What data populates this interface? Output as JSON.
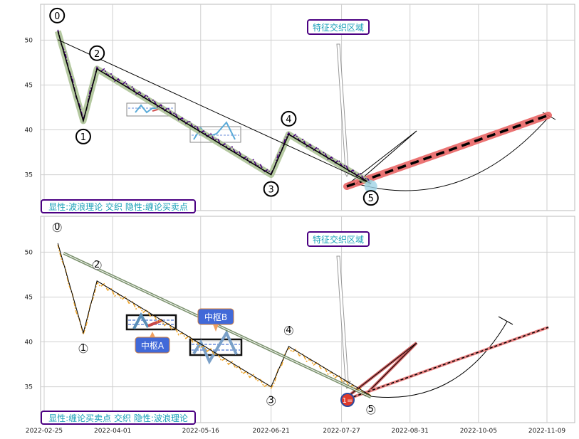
{
  "chart_data": [
    {
      "type": "line",
      "panel": "top",
      "x_ticks": [
        "2022-02-25",
        "2022-04-01",
        "2022-05-16",
        "2022-06-21",
        "2022-07-27",
        "2022-08-31",
        "2022-10-05",
        "2022-11-09"
      ],
      "y_ticks": [
        35,
        40,
        45,
        50
      ],
      "ylim": [
        31,
        54
      ],
      "grid": true,
      "annotation_title": "特征交织区域",
      "footer": "显性:波浪理论 交织 隐性:缠论买卖点",
      "wave_points": [
        {
          "label": "0",
          "x": "2022-03-04",
          "y": 51.0
        },
        {
          "label": "1",
          "x": "2022-03-17",
          "y": 41.0
        },
        {
          "label": "2",
          "x": "2022-03-24",
          "y": 46.8
        },
        {
          "label": "3",
          "x": "2022-06-21",
          "y": 35.0
        },
        {
          "label": "4",
          "x": "2022-06-30",
          "y": 39.5
        },
        {
          "label": "5",
          "x": "2022-08-11",
          "y": 34.0
        }
      ]
    },
    {
      "type": "line",
      "panel": "bottom",
      "x_ticks": [
        "2022-02-25",
        "2022-04-01",
        "2022-05-16",
        "2022-06-21",
        "2022-07-27",
        "2022-08-31",
        "2022-10-05",
        "2022-11-09"
      ],
      "y_ticks": [
        35,
        40,
        45,
        50
      ],
      "ylim": [
        31,
        54
      ],
      "grid": true,
      "annotation_title": "特征交织区域",
      "footer": "显性:缠论买卖点 交织 隐性:波浪理论",
      "centers": [
        "中枢A",
        "中枢B"
      ],
      "buy_point_label": "1=",
      "wave_points": [
        {
          "label": "0",
          "x": "2022-03-04",
          "y": 51.0
        },
        {
          "label": "1",
          "x": "2022-03-17",
          "y": 41.0
        },
        {
          "label": "2",
          "x": "2022-03-24",
          "y": 46.8
        },
        {
          "label": "3",
          "x": "2022-06-21",
          "y": 35.0
        },
        {
          "label": "4",
          "x": "2022-06-30",
          "y": 39.5
        },
        {
          "label": "5",
          "x": "2022-08-11",
          "y": 34.0
        }
      ]
    }
  ],
  "colors": {
    "price_top": "#4b0082",
    "price_bottom": "#f0a830",
    "wave_highlight": "#a8c090",
    "forecast": "#e85c5c",
    "label_box_border": "#4b0082",
    "label_box_text": "#1aa0b8",
    "center_box": "#3f6fd8"
  }
}
